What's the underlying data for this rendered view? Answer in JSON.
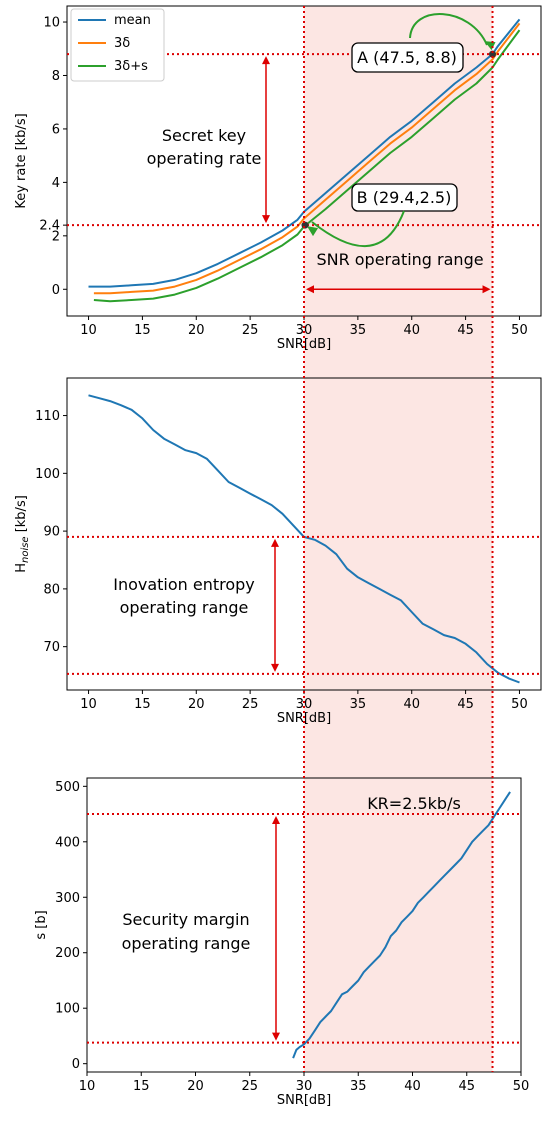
{
  "colors": {
    "mean": "#1f77b4",
    "three_delta": "#ff7f0e",
    "three_delta_s": "#2ca02c",
    "ref_line": "#dd0000",
    "shade": "#fce6e3",
    "green_arrow": "#2ca02c"
  },
  "chart_data": [
    {
      "type": "line",
      "xlabel": "SNR[dB]",
      "ylabel": "Key rate [kb/s]",
      "xlim": [
        8,
        52
      ],
      "ylim": [
        -1.0,
        10.6
      ],
      "xticks": [
        "10",
        "15",
        "20",
        "25",
        "30",
        "35",
        "40",
        "45",
        "50"
      ],
      "yticks": [
        "0",
        "2",
        "2.4",
        "4",
        "6",
        "8",
        "10"
      ],
      "legend_position": "top-left",
      "series": [
        {
          "name": "mean",
          "x": [
            10,
            12,
            14,
            16,
            18,
            20,
            22,
            24,
            26,
            28,
            29.4,
            30,
            32,
            34,
            36,
            38,
            40,
            42,
            44,
            46,
            47.5,
            48,
            50
          ],
          "y": [
            0.1,
            0.1,
            0.15,
            0.2,
            0.35,
            0.6,
            0.95,
            1.35,
            1.75,
            2.2,
            2.6,
            2.9,
            3.6,
            4.3,
            5.0,
            5.7,
            6.3,
            7.0,
            7.7,
            8.3,
            8.8,
            9.1,
            10.1
          ]
        },
        {
          "name": "3δ",
          "x": [
            10.5,
            12,
            14,
            16,
            18,
            20,
            22,
            24,
            26,
            28,
            29.4,
            30,
            32,
            34,
            36,
            38,
            40,
            42,
            44,
            46,
            47.5,
            48,
            50
          ],
          "y": [
            -0.15,
            -0.15,
            -0.1,
            -0.05,
            0.1,
            0.35,
            0.7,
            1.1,
            1.5,
            1.95,
            2.35,
            2.65,
            3.35,
            4.05,
            4.75,
            5.45,
            6.05,
            6.75,
            7.45,
            8.05,
            8.6,
            8.9,
            9.95
          ]
        },
        {
          "name": "3δ+s",
          "x": [
            10.5,
            12,
            14,
            16,
            18,
            20,
            22,
            24,
            26,
            28,
            29.4,
            30,
            32,
            34,
            36,
            38,
            40,
            42,
            44,
            46,
            47.5,
            48,
            50
          ],
          "y": [
            -0.4,
            -0.45,
            -0.4,
            -0.35,
            -0.2,
            0.05,
            0.4,
            0.8,
            1.2,
            1.65,
            2.05,
            2.35,
            3.0,
            3.7,
            4.4,
            5.1,
            5.7,
            6.4,
            7.1,
            7.7,
            8.3,
            8.6,
            9.7
          ]
        }
      ],
      "hlines": [
        8.8,
        2.4
      ],
      "vlines": [
        30,
        47.5
      ],
      "shaded_x_range": [
        30,
        47.5
      ],
      "points": [
        {
          "label": "A (47.5, 8.8)",
          "x": 47.5,
          "y": 8.8
        },
        {
          "label": "B (29.4,2.5)",
          "x": 29.4,
          "y": 2.5
        }
      ],
      "annotations": {
        "key_rate_line1": "Secret key",
        "key_rate_line2": "operating rate",
        "snr_range": "SNR operating range"
      }
    },
    {
      "type": "line",
      "xlabel": "SNR[dB]",
      "ylabel": "H_noise [kb/s]",
      "ylabel_main": "H",
      "ylabel_sub": "noise",
      "ylabel_tail": " [kb/s]",
      "xlim": [
        8,
        52
      ],
      "ylim": [
        62.5,
        116.5
      ],
      "xticks": [
        "10",
        "15",
        "20",
        "25",
        "30",
        "35",
        "40",
        "45",
        "50"
      ],
      "yticks": [
        "70",
        "80",
        "90",
        "100",
        "110"
      ],
      "series": [
        {
          "x": [
            10,
            11,
            12,
            13,
            14,
            15,
            16,
            17,
            18,
            19,
            20,
            21,
            22,
            23,
            24,
            25,
            26,
            27,
            28,
            29,
            30,
            31,
            32,
            33,
            34,
            35,
            36,
            37,
            38,
            39,
            40,
            41,
            42,
            43,
            44,
            45,
            46,
            47,
            48,
            49,
            50
          ],
          "y": [
            113.5,
            113.0,
            112.5,
            111.8,
            111.0,
            109.5,
            107.5,
            106.0,
            105.0,
            104.0,
            103.5,
            102.5,
            100.5,
            98.5,
            97.5,
            96.5,
            95.5,
            94.5,
            93.0,
            91.0,
            89.0,
            88.5,
            87.5,
            86.0,
            83.5,
            82.0,
            81.0,
            80.0,
            79.0,
            78.0,
            76.0,
            74.0,
            73.0,
            72.0,
            71.5,
            70.5,
            69.0,
            67.0,
            65.5,
            64.5,
            63.8
          ]
        }
      ],
      "hlines": [
        89,
        65.3
      ],
      "vlines": [
        30,
        47.5
      ],
      "shaded_x_range": [
        30,
        47.5
      ],
      "annotations": {
        "line1": "Inovation entropy",
        "line2": "operating range"
      }
    },
    {
      "type": "line",
      "xlabel": "SNR[dB]",
      "ylabel": "s [b]",
      "xlim": [
        10,
        50
      ],
      "ylim": [
        -15,
        515
      ],
      "xticks": [
        "10",
        "15",
        "20",
        "25",
        "30",
        "35",
        "40",
        "45",
        "50"
      ],
      "yticks": [
        "0",
        "100",
        "200",
        "300",
        "400",
        "500"
      ],
      "series": [
        {
          "x": [
            29,
            29.3,
            29.6,
            30,
            30.5,
            31,
            31.5,
            32,
            32.5,
            33,
            33.5,
            34,
            34.5,
            35,
            35.5,
            36,
            36.5,
            37,
            37.5,
            38,
            38.5,
            39,
            39.5,
            40,
            40.5,
            41,
            41.5,
            42,
            42.5,
            43,
            43.5,
            44,
            44.5,
            45,
            45.5,
            46,
            46.5,
            47,
            47.5,
            48,
            48.5,
            49
          ],
          "y": [
            10,
            25,
            30,
            35,
            45,
            60,
            75,
            85,
            95,
            110,
            125,
            130,
            140,
            150,
            165,
            175,
            185,
            195,
            210,
            230,
            240,
            255,
            265,
            275,
            290,
            300,
            310,
            320,
            330,
            340,
            350,
            360,
            370,
            385,
            400,
            410,
            420,
            430,
            445,
            460,
            475,
            490
          ]
        }
      ],
      "hlines": [
        450,
        38
      ],
      "vlines": [
        30,
        47.5
      ],
      "shaded_x_range": [
        30,
        47.5
      ],
      "annotations": {
        "kr_label": "KR=2.5kb/s",
        "line1": "Security margin",
        "line2": "operating range"
      }
    }
  ]
}
